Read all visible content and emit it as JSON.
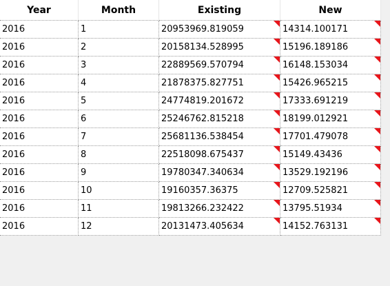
{
  "table": {
    "headers": {
      "year": "Year",
      "month": "Month",
      "existing": "Existing",
      "new": "New"
    },
    "rows": [
      {
        "year": "2016",
        "month": "1",
        "existing": "20953969.819059",
        "new": "14314.100171"
      },
      {
        "year": "2016",
        "month": "2",
        "existing": "20158134.528995",
        "new": "15196.189186"
      },
      {
        "year": "2016",
        "month": "3",
        "existing": "22889569.570794",
        "new": "16148.153034"
      },
      {
        "year": "2016",
        "month": "4",
        "existing": "21878375.827751",
        "new": "15426.965215"
      },
      {
        "year": "2016",
        "month": "5",
        "existing": "24774819.201672",
        "new": "17333.691219"
      },
      {
        "year": "2016",
        "month": "6",
        "existing": "25246762.815218",
        "new": "18199.012921"
      },
      {
        "year": "2016",
        "month": "7",
        "existing": "25681136.538454",
        "new": "17701.479078"
      },
      {
        "year": "2016",
        "month": "8",
        "existing": "22518098.675437",
        "new": "15149.43436"
      },
      {
        "year": "2016",
        "month": "9",
        "existing": "19780347.340634",
        "new": "13529.192196"
      },
      {
        "year": "2016",
        "month": "10",
        "existing": "19160357.36375",
        "new": "12709.525821"
      },
      {
        "year": "2016",
        "month": "11",
        "existing": "19813266.232422",
        "new": "13795.51934"
      },
      {
        "year": "2016",
        "month": "12",
        "existing": "20131473.405634",
        "new": "14152.763131"
      }
    ]
  },
  "colors": {
    "comment_flag": "#e8151b",
    "grid_background": "#ffffff",
    "app_background": "#f0f0f0"
  }
}
